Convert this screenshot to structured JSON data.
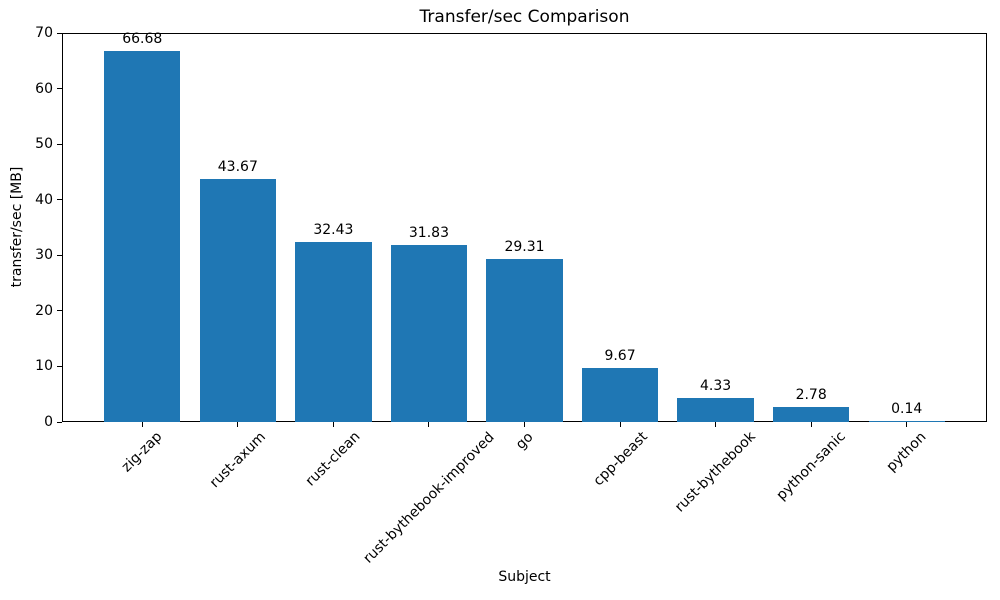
{
  "chart_data": {
    "type": "bar",
    "title": "Transfer/sec Comparison",
    "xlabel": "Subject",
    "ylabel": "transfer/sec [MB]",
    "categories": [
      "zig-zap",
      "rust-axum",
      "rust-clean",
      "rust-bythebook-improved",
      "go",
      "cpp-beast",
      "rust-bythebook",
      "python-sanic",
      "python"
    ],
    "values": [
      66.68,
      43.67,
      32.43,
      31.83,
      29.31,
      9.67,
      4.33,
      2.78,
      0.14
    ],
    "bar_labels": [
      "66.68",
      "43.67",
      "32.43",
      "31.83",
      "29.31",
      "9.67",
      "4.33",
      "2.78",
      "0.14"
    ],
    "ylim": [
      0,
      70
    ],
    "yticks": [
      0,
      10,
      20,
      30,
      40,
      50,
      60,
      70
    ],
    "bar_color": "#1f77b4",
    "grid": false,
    "legend_position": "none",
    "x_tick_rotation_deg": 45
  }
}
